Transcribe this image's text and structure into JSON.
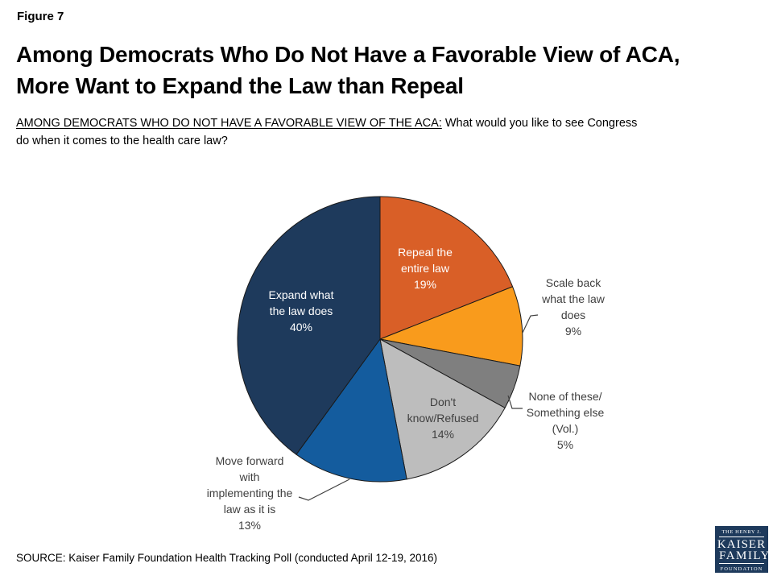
{
  "figure_label": "Figure 7",
  "title": {
    "line1": "Among Democrats Who Do Not Have a Favorable View of ACA,",
    "line2": "More Want to Expand the Law than Repeal"
  },
  "subtitle": {
    "underlined": "AMONG DEMOCRATS WHO DO NOT HAVE A FAVORABLE VIEW OF THE ACA:",
    "rest_line1": " What would you like to see Congress",
    "line2": "do when it comes to the health care law?"
  },
  "source": "SOURCE: Kaiser Family Foundation Health Tracking Poll (conducted April 12-19, 2016)",
  "logo": {
    "line1": "THE HENRY J.",
    "line2": "KAISER",
    "line3": "FAMILY",
    "line4": "FOUNDATION"
  },
  "chart_data": {
    "type": "pie",
    "title": "",
    "units": "percent",
    "start_angle_deg": 0,
    "direction": "clockwise",
    "outline_color": "#1A1A1A",
    "slices": [
      {
        "id": "repeal",
        "label": "Repeal the entire law",
        "value": 19,
        "color": "#D95F27",
        "label_lines": [
          "Repeal the",
          "entire law",
          "19%"
        ],
        "label_placement": "inside",
        "label_color": "#FFFFFF"
      },
      {
        "id": "scale-back",
        "label": "Scale back what the law does",
        "value": 9,
        "color": "#F99B1C",
        "label_lines": [
          "Scale back",
          "what the law",
          "does",
          "9%"
        ],
        "label_placement": "outside",
        "label_color": "#3F3F3F"
      },
      {
        "id": "none-something-else",
        "label": "None of these/Something else (Vol.)",
        "value": 5,
        "color": "#7F7F7F",
        "label_lines": [
          "None of these/",
          "Something else",
          "(Vol.)",
          "5%"
        ],
        "label_placement": "outside",
        "label_color": "#3F3F3F"
      },
      {
        "id": "dont-know",
        "label": "Don't know/Refused",
        "value": 14,
        "color": "#BDBDBD",
        "label_lines": [
          "Don't",
          "know/Refused",
          "14%"
        ],
        "label_placement": "inside",
        "label_color": "#3F3F3F"
      },
      {
        "id": "move-forward",
        "label": "Move forward with implementing the law as it is",
        "value": 13,
        "color": "#145C9E",
        "label_lines": [
          "Move forward",
          "with",
          "implementing the",
          "law as it is",
          "13%"
        ],
        "label_placement": "outside",
        "label_color": "#3F3F3F"
      },
      {
        "id": "expand",
        "label": "Expand what the law does",
        "value": 40,
        "color": "#1E3A5C",
        "label_lines": [
          "Expand what",
          "the law does",
          "40%"
        ],
        "label_placement": "inside",
        "label_color": "#FFFFFF"
      }
    ]
  }
}
